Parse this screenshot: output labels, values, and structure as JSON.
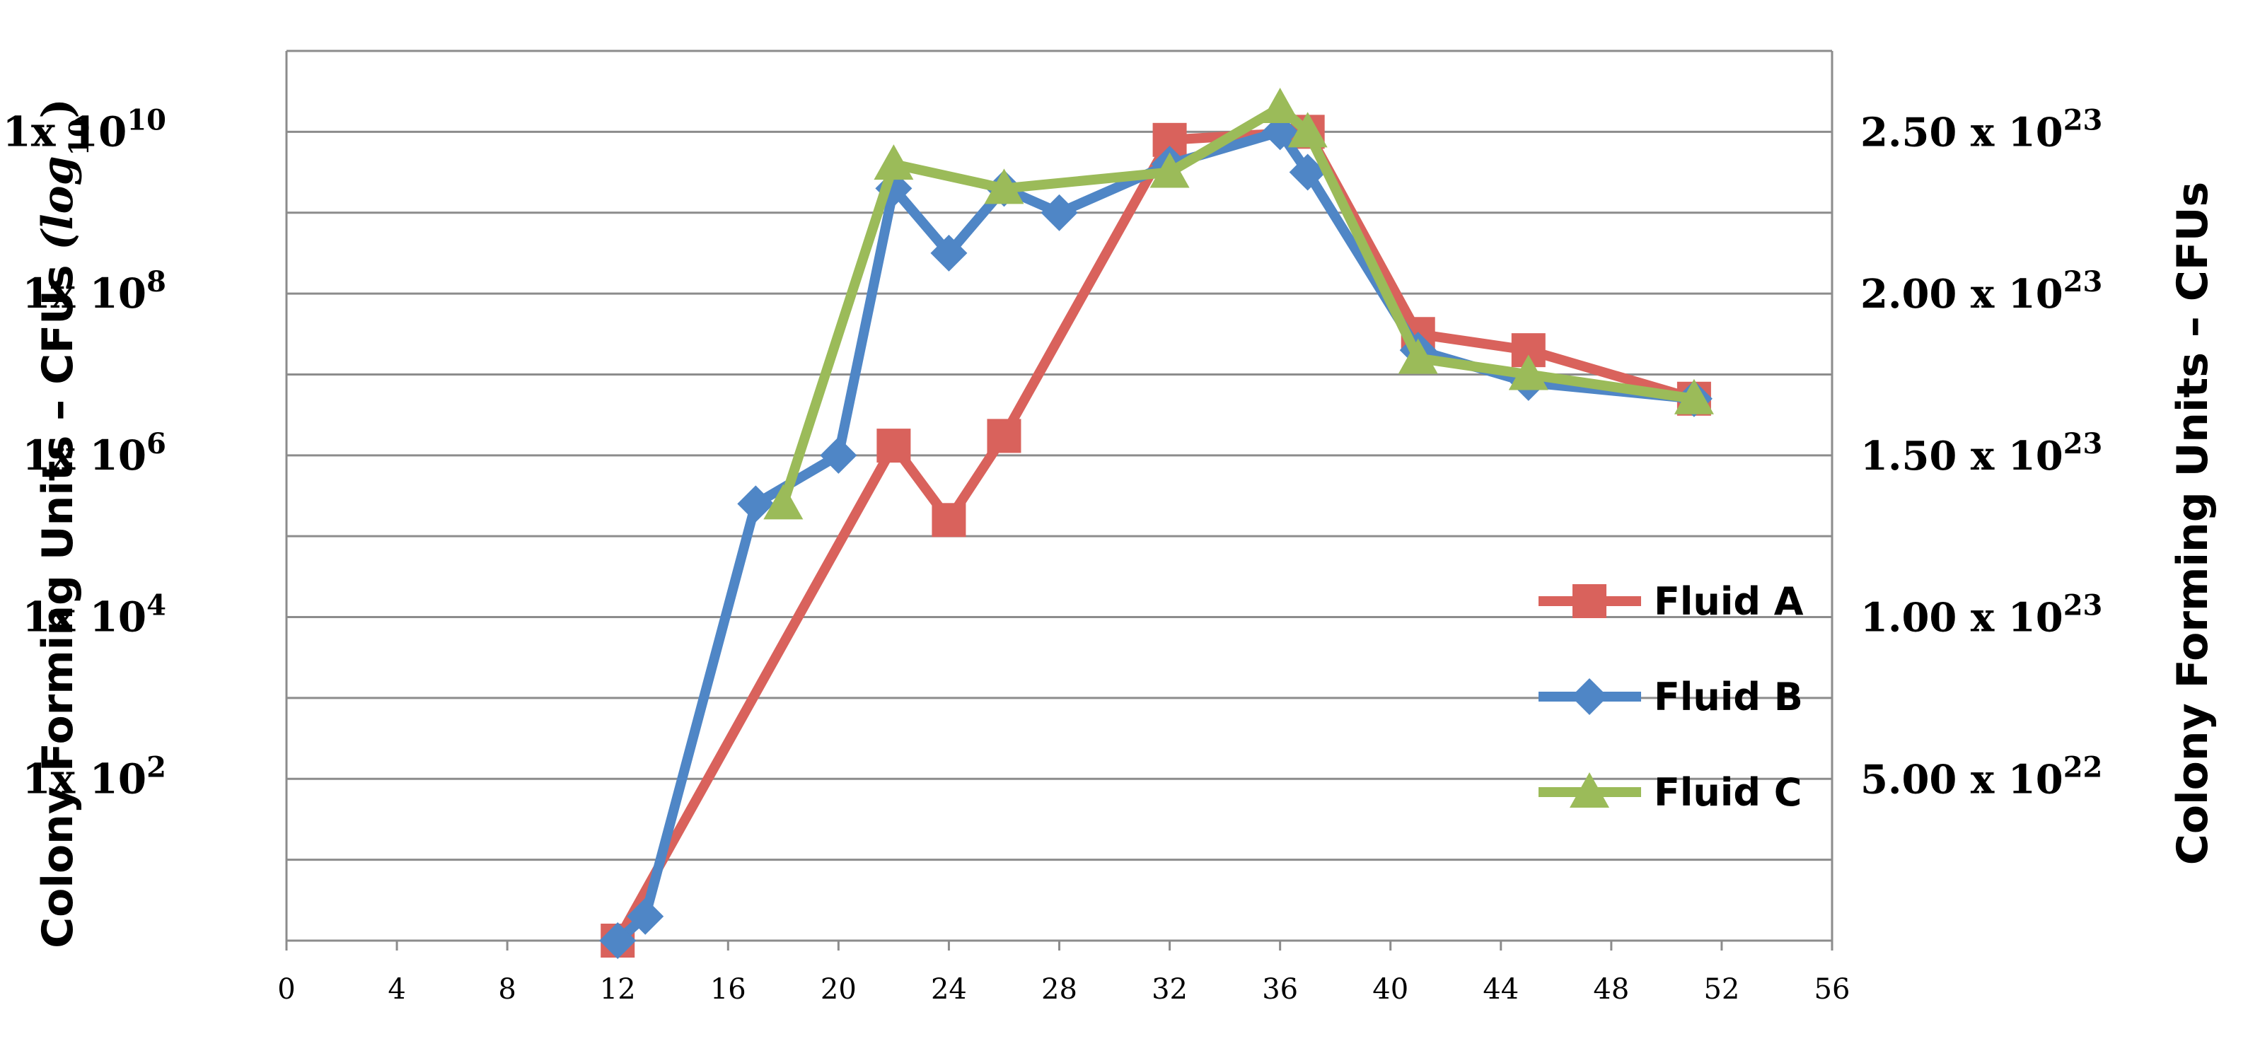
{
  "chart_data": {
    "type": "line",
    "title": "",
    "xlabel": "",
    "ylabel": "Colony Forming Units – CFUs",
    "ylabel_suffix": "(log",
    "ylabel_sub": "10",
    "ylabel_close": ")",
    "y2label": "Colony Forming Units – CFUs",
    "xlim": [
      0,
      56
    ],
    "x_ticks": [
      "0",
      "4",
      "8",
      "12",
      "16",
      "20",
      "24",
      "28",
      "32",
      "36",
      "40",
      "44",
      "48",
      "52",
      "56"
    ],
    "y_scale": "log",
    "ylim_exp": [
      0,
      11
    ],
    "y_ticks": [
      {
        "base": "1x 10",
        "exp": "2",
        "value_exp": 2
      },
      {
        "base": "1x 10",
        "exp": "4",
        "value_exp": 4
      },
      {
        "base": "1x 10",
        "exp": "6",
        "value_exp": 6
      },
      {
        "base": "1x 10",
        "exp": "8",
        "value_exp": 8
      },
      {
        "base": "1x 10",
        "exp": "10",
        "value_exp": 10
      }
    ],
    "y2lim": [
      0,
      2.75e+23
    ],
    "y2_ticks": [
      {
        "base": "5.00 x 10",
        "exp": "22",
        "value": 5e+22
      },
      {
        "base": "1.00 x 10",
        "exp": "23",
        "value": 1e+23
      },
      {
        "base": "1.50 x 10",
        "exp": "23",
        "value": 1.5e+23
      },
      {
        "base": "2.00 x 10",
        "exp": "23",
        "value": 2e+23
      },
      {
        "base": "2.50 x 10",
        "exp": "23",
        "value": 2.5e+23
      }
    ],
    "grid": true,
    "legend_position": "right",
    "series": [
      {
        "name": "Fluid A",
        "color": "#D9625C",
        "marker": "square",
        "x": [
          12,
          32,
          37,
          41,
          45,
          51
        ],
        "y_exp": [
          0,
          9.9,
          10.0,
          7.5,
          7.3,
          6.7
        ]
      },
      {
        "name": "Fluid B",
        "color": "#4F86C6",
        "marker": "diamond",
        "x": [
          12,
          13,
          17,
          20,
          22,
          24,
          26,
          28,
          32,
          36,
          37,
          41,
          45,
          51
        ],
        "y_exp": [
          0,
          0.3,
          5.4,
          6.0,
          9.3,
          8.5,
          9.3,
          9.0,
          9.6,
          10.0,
          9.5,
          7.3,
          6.9,
          6.7
        ]
      },
      {
        "name": "Fluid C",
        "color": "#9BBB59",
        "marker": "triangle",
        "x": [
          18,
          22,
          26,
          32,
          36,
          37,
          41,
          45,
          51
        ],
        "y_exp": [
          5.4,
          9.6,
          9.3,
          9.5,
          10.3,
          10.0,
          7.2,
          7.0,
          6.7
        ]
      }
    ],
    "series_right_axis": {
      "name": "Fluid A",
      "x": [
        22,
        24,
        26
      ],
      "y": [
        1.53e+23,
        1.3e+23,
        1.56e+23
      ]
    }
  }
}
